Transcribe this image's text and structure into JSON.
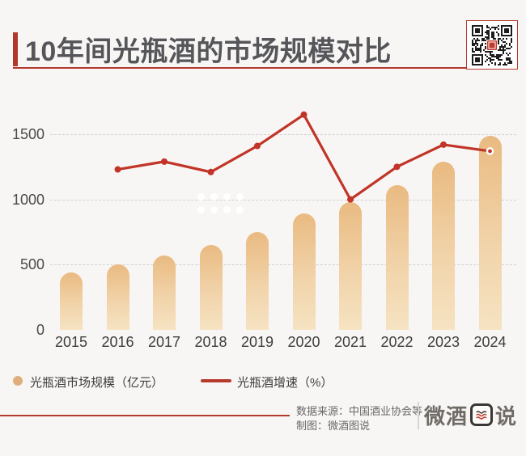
{
  "header": {
    "title": "10年间光瓶酒的市场规模对比",
    "qr_code": "qr-code-wechat"
  },
  "chart_data": {
    "type": "bar+line",
    "title": "10年间光瓶酒的市场规模对比",
    "categories": [
      "2015",
      "2016",
      "2017",
      "2018",
      "2019",
      "2020",
      "2021",
      "2022",
      "2023",
      "2024"
    ],
    "series": [
      {
        "name": "光瓶酒市场规模（亿元）",
        "type": "bar",
        "values": [
          440,
          500,
          570,
          650,
          750,
          890,
          980,
          1110,
          1290,
          1490
        ]
      },
      {
        "name": "光瓶酒增速（%）",
        "type": "line",
        "values": [
          null,
          1230,
          1290,
          1210,
          1410,
          1650,
          1000,
          1250,
          1420,
          1370
        ],
        "note": "line plotted against the left axis scale; no separate % axis shown"
      }
    ],
    "xlabel": "",
    "ylabel": "",
    "yticks": [
      0,
      500,
      1000,
      1500
    ],
    "ylim": [
      0,
      1700
    ],
    "grid": "dashed-horizontal",
    "legend_position": "bottom-left"
  },
  "legend": {
    "bar_label": "光瓶酒市场规模（亿元）",
    "line_label": "光瓶酒增速（%）"
  },
  "footer": {
    "source": "数据来源：中国酒业协会等",
    "credit": "制图：微酒图说",
    "logo_text": "微酒图说",
    "logo_parts": {
      "left": "微酒",
      "boxed": "图",
      "right": "说"
    }
  },
  "colors": {
    "background": "#f8f6f4",
    "accent_red": "#b2382d",
    "line_red": "#c13427",
    "bar_gradient_top": "#e9ba81",
    "bar_gradient_bottom": "#f6e3c2",
    "legend_dot": "#e0ae7b",
    "title_text": "#55555a",
    "axis_text": "#4a4a4a"
  }
}
